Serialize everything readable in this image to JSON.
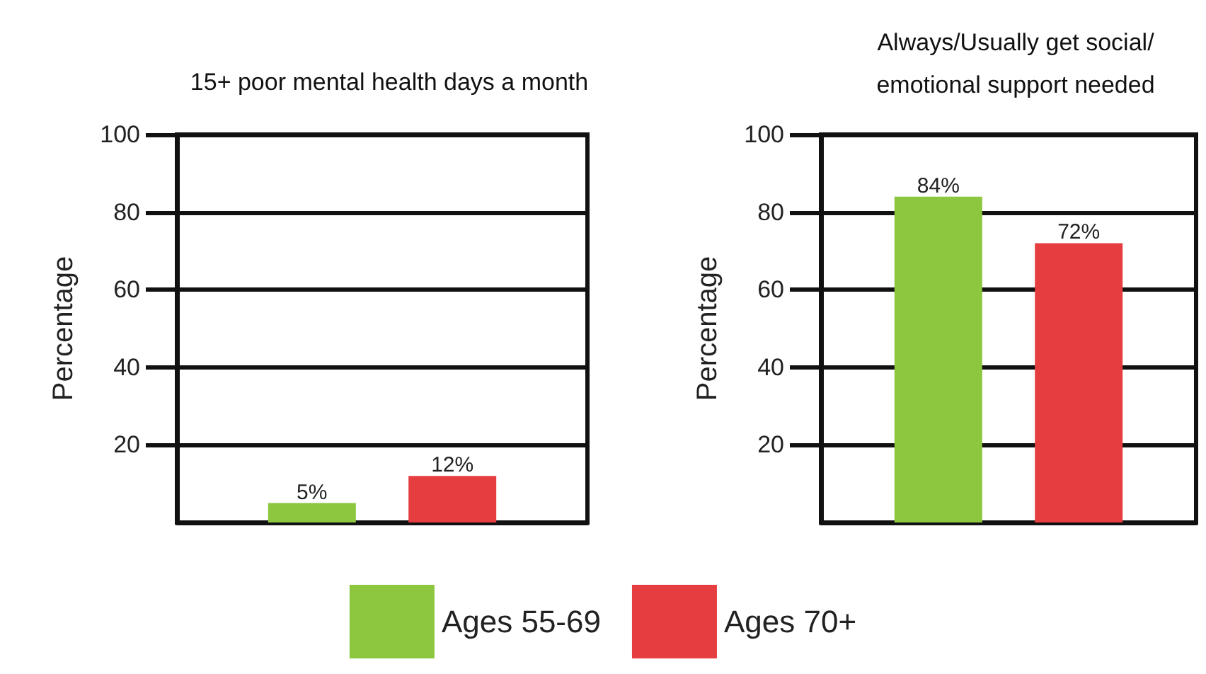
{
  "chart_data": [
    {
      "type": "bar",
      "title": "15+ poor mental health days a month",
      "ylabel": "Percentage",
      "categories": [
        null
      ],
      "ylim": [
        0,
        100
      ],
      "yticks": [
        20,
        40,
        60,
        80,
        100
      ],
      "grid": "y",
      "legend": "bottom",
      "series": [
        {
          "name": "Ages 55-69",
          "color": "#8dc63f",
          "values": [
            5
          ],
          "value_labels": [
            "5%"
          ]
        },
        {
          "name": "Ages 70+",
          "color": "#e63e40",
          "values": [
            12
          ],
          "value_labels": [
            "12%"
          ]
        }
      ]
    },
    {
      "type": "bar",
      "title": "Always/Usually get social/\nemotional support needed",
      "ylabel": "Percentage",
      "categories": [
        null
      ],
      "ylim": [
        0,
        100
      ],
      "yticks": [
        20,
        40,
        60,
        80,
        100
      ],
      "grid": "y",
      "series": [
        {
          "color": "#8dc63f",
          "values": [
            84
          ],
          "value_labels": [
            "84%"
          ]
        },
        {
          "color": "#e63e40",
          "values": [
            72
          ],
          "value_labels": [
            "72%"
          ]
        }
      ]
    }
  ]
}
